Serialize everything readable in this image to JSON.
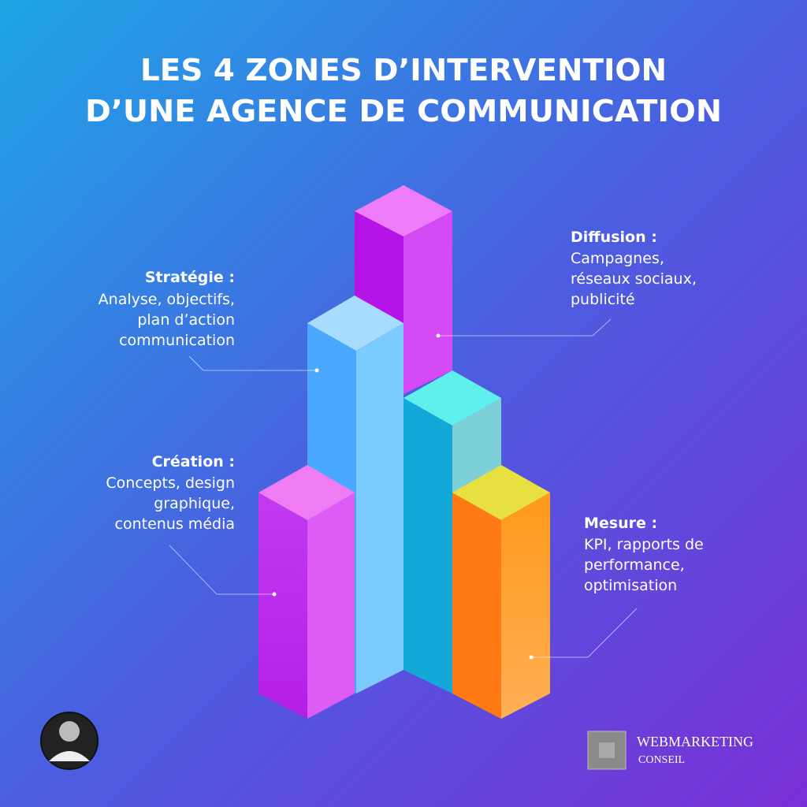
{
  "title": {
    "lines": [
      "LES 4 ZONES D’INTERVENTION",
      "D’UNE AGENCE DE COMMUNICATION"
    ]
  },
  "zones": [
    {
      "heading": "Stratégie :",
      "lines": [
        "Analyse, objectifs,",
        "plan d’action",
        "communication"
      ]
    },
    {
      "heading": "Diffusion :",
      "lines": [
        "Campagnes,",
        "réseaux sociaux,",
        "publicité"
      ]
    },
    {
      "heading": "Création :",
      "lines": [
        "Concepts, design",
        "graphique,",
        "contenus média"
      ]
    },
    {
      "heading": "Mesure :",
      "lines": [
        "KPI, rapports de",
        "performance,",
        "optimisation"
      ]
    }
  ],
  "logo": {
    "name": "WEBMARKETING",
    "sub": "CONSEIL"
  }
}
